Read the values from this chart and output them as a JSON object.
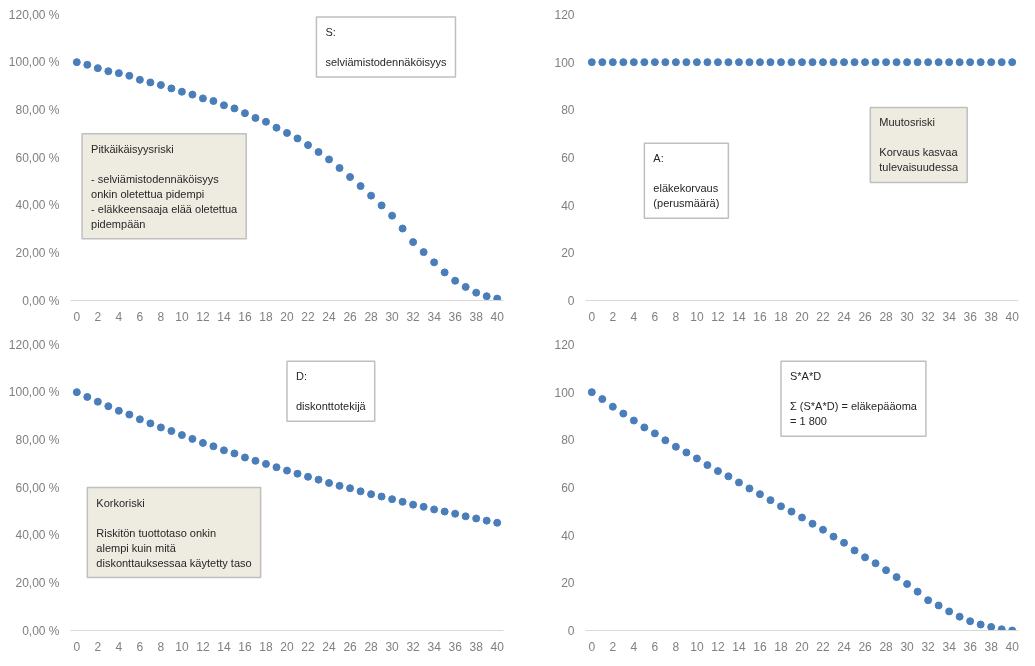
{
  "chart_data": [
    {
      "type": "scatter",
      "marker": "circle",
      "x": [
        0,
        1,
        2,
        3,
        4,
        5,
        6,
        7,
        8,
        9,
        10,
        11,
        12,
        13,
        14,
        15,
        16,
        17,
        18,
        19,
        20,
        21,
        22,
        23,
        24,
        25,
        26,
        27,
        28,
        29,
        30,
        31,
        32,
        33,
        34,
        35,
        36,
        37,
        38,
        39,
        40
      ],
      "series": [
        {
          "color": "#4a7ebb",
          "values": [
            100,
            98.9,
            97.5,
            96.2,
            95.4,
            94.3,
            92.6,
            91.5,
            90.4,
            89,
            87.6,
            86.4,
            84.8,
            83.7,
            81.9,
            80.6,
            78.6,
            76.6,
            75,
            72.5,
            70.3,
            68,
            65.2,
            62.3,
            59.2,
            55.6,
            51.8,
            48,
            44,
            39.9,
            35.6,
            30.2,
            24.5,
            20.3,
            16,
            11.8,
            8.3,
            5.7,
            3.3,
            1.8,
            0.8
          ]
        }
      ],
      "xlim": [
        -0.6,
        40.6
      ],
      "xticks": [
        0,
        2,
        4,
        6,
        8,
        10,
        12,
        14,
        16,
        18,
        20,
        22,
        24,
        26,
        28,
        30,
        32,
        34,
        36,
        38,
        40
      ],
      "ylim": [
        0,
        120
      ],
      "yticks": [
        {
          "value": 0,
          "label": "0,00 %"
        },
        {
          "value": 20,
          "label": "20,00 %"
        },
        {
          "value": 40,
          "label": "40,00 %"
        },
        {
          "value": 60,
          "label": "60,00 %"
        },
        {
          "value": 80,
          "label": "80,00 %"
        },
        {
          "value": 100,
          "label": "100,00 %"
        },
        {
          "value": 120,
          "label": "120,00 %"
        }
      ],
      "annotations": [
        "S:\n\nselviämistodennäköisyys",
        "Pitkäikäisyysriski\n\n- selviämistodennäköisyys\nonkin oletettua pidempi\n- eläkkeensaaja elää oletettua\npidempään"
      ]
    },
    {
      "type": "scatter",
      "marker": "circle",
      "x": [
        0,
        1,
        2,
        3,
        4,
        5,
        6,
        7,
        8,
        9,
        10,
        11,
        12,
        13,
        14,
        15,
        16,
        17,
        18,
        19,
        20,
        21,
        22,
        23,
        24,
        25,
        26,
        27,
        28,
        29,
        30,
        31,
        32,
        33,
        34,
        35,
        36,
        37,
        38,
        39,
        40
      ],
      "series": [
        {
          "color": "#4a7ebb",
          "values": [
            100,
            100,
            100,
            100,
            100,
            100,
            100,
            100,
            100,
            100,
            100,
            100,
            100,
            100,
            100,
            100,
            100,
            100,
            100,
            100,
            100,
            100,
            100,
            100,
            100,
            100,
            100,
            100,
            100,
            100,
            100,
            100,
            100,
            100,
            100,
            100,
            100,
            100,
            100,
            100,
            100
          ]
        }
      ],
      "xlim": [
        -0.6,
        40.6
      ],
      "xticks": [
        0,
        2,
        4,
        6,
        8,
        10,
        12,
        14,
        16,
        18,
        20,
        22,
        24,
        26,
        28,
        30,
        32,
        34,
        36,
        38,
        40
      ],
      "ylim": [
        0,
        120
      ],
      "yticks": [
        0,
        20,
        40,
        60,
        80,
        100,
        120
      ],
      "annotations": [
        "A:\n\neläkekorvaus\n(perusmäärä)",
        "Muutosriski\n\nKorvaus kasvaa\ntulevaisuudessa"
      ]
    },
    {
      "type": "scatter",
      "marker": "circle",
      "x": [
        0,
        1,
        2,
        3,
        4,
        5,
        6,
        7,
        8,
        9,
        10,
        11,
        12,
        13,
        14,
        15,
        16,
        17,
        18,
        19,
        20,
        21,
        22,
        23,
        24,
        25,
        26,
        27,
        28,
        29,
        30,
        31,
        32,
        33,
        34,
        35,
        36,
        37,
        38,
        39,
        40
      ],
      "series": [
        {
          "color": "#4a7ebb",
          "values": [
            100,
            98,
            96,
            94.1,
            92.2,
            90.6,
            88.6,
            86.9,
            85.2,
            83.7,
            82,
            80.4,
            78.7,
            77.3,
            75.6,
            74.3,
            72.6,
            71.2,
            69.9,
            68.5,
            67.1,
            65.8,
            64.5,
            63.3,
            61.9,
            60.7,
            59.7,
            58.4,
            57.2,
            56.2,
            55.1,
            54,
            52.8,
            51.9,
            50.8,
            49.9,
            49,
            47.9,
            47,
            46.1,
            45.2
          ]
        }
      ],
      "xlim": [
        -0.6,
        40.6
      ],
      "xticks": [
        0,
        2,
        4,
        6,
        8,
        10,
        12,
        14,
        16,
        18,
        20,
        22,
        24,
        26,
        28,
        30,
        32,
        34,
        36,
        38,
        40
      ],
      "ylim": [
        0,
        120
      ],
      "yticks": [
        {
          "value": 0,
          "label": "0,00 %"
        },
        {
          "value": 20,
          "label": "20,00 %"
        },
        {
          "value": 40,
          "label": "40,00 %"
        },
        {
          "value": 60,
          "label": "60,00 %"
        },
        {
          "value": 80,
          "label": "80,00 %"
        },
        {
          "value": 100,
          "label": "100,00 %"
        },
        {
          "value": 120,
          "label": "120,00 %"
        }
      ],
      "annotations": [
        "D:\n\ndiskonttotekijä",
        "Korkoriski\n\nRiskitön tuottotaso onkin\nalempi kuin mitä\ndiskonttauksessaa käytetty taso"
      ]
    },
    {
      "type": "scatter",
      "marker": "circle",
      "x": [
        0,
        1,
        2,
        3,
        4,
        5,
        6,
        7,
        8,
        9,
        10,
        11,
        12,
        13,
        14,
        15,
        16,
        17,
        18,
        19,
        20,
        21,
        22,
        23,
        24,
        25,
        26,
        27,
        28,
        29,
        30,
        31,
        32,
        33,
        34,
        35,
        36,
        37,
        38,
        39,
        40
      ],
      "series": [
        {
          "color": "#4a7ebb",
          "values": [
            100,
            97.1,
            93.9,
            91,
            88.1,
            85.2,
            82.7,
            79.8,
            77.1,
            74.7,
            72.2,
            69.4,
            66.9,
            64.7,
            62.1,
            59.6,
            57.2,
            54.7,
            52.1,
            49.9,
            47.4,
            44.8,
            42.3,
            39.4,
            36.8,
            33.6,
            30.7,
            28.2,
            25.3,
            22.4,
            19.5,
            16.3,
            12.7,
            10.5,
            8,
            5.8,
            3.9,
            2.5,
            1.5,
            0.5,
            0
          ]
        }
      ],
      "xlim": [
        -0.6,
        40.6
      ],
      "xticks": [
        0,
        2,
        4,
        6,
        8,
        10,
        12,
        14,
        16,
        18,
        20,
        22,
        24,
        26,
        28,
        30,
        32,
        34,
        36,
        38,
        40
      ],
      "ylim": [
        0,
        120
      ],
      "yticks": [
        0,
        20,
        40,
        60,
        80,
        100,
        120
      ],
      "annotations": [
        "S*A*D\n\nΣ (S*A*D) = eläkepääoma\n= 1 800"
      ]
    }
  ]
}
